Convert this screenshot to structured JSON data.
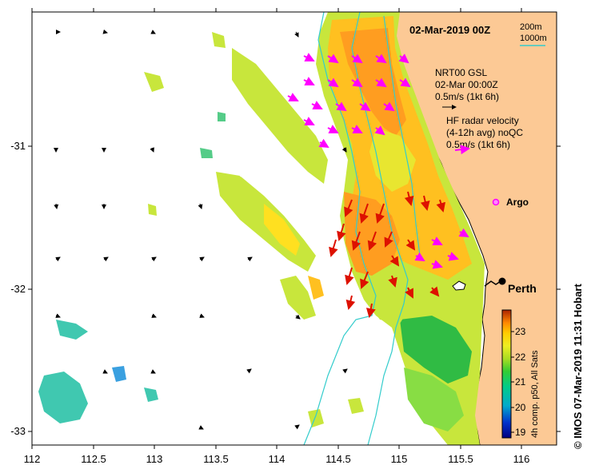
{
  "title": "02-Mar-2019 00Z",
  "contours": {
    "c200": "200m",
    "c1000": "1000m",
    "color": "#33cccc"
  },
  "legend": {
    "gsl_line1": "NRT00 GSL",
    "gsl_line2": "02-Mar 00:00Z",
    "gsl_line3": "0.5m/s (1kt 6h)",
    "hf_line1": "HF radar velocity",
    "hf_line2": "(4-12h avg) noQC",
    "hf_line3": "0.5m/s (1kt 6h)",
    "hf_arrow_color": "#ff00ff"
  },
  "markers": {
    "argo": "Argo",
    "city": "Perth"
  },
  "axes": {
    "x_ticks": [
      "112",
      "112.5",
      "113",
      "113.5",
      "114",
      "114.5",
      "115",
      "115.5",
      "116"
    ],
    "y_ticks": [
      "-31",
      "-32",
      "-33"
    ],
    "xlim": [
      112,
      116.3
    ],
    "ylim": [
      -33.1,
      -30.1
    ]
  },
  "colorbar": {
    "ticks": [
      "19",
      "20",
      "21",
      "22",
      "23"
    ],
    "label": "4h comp. p50, All Sats",
    "range": [
      18.8,
      23.7
    ]
  },
  "credit": "© IMOS 07-Mar-2019 11:31 Hobart",
  "colors": {
    "land": "#fcc995",
    "ocean": "#ffffff"
  }
}
